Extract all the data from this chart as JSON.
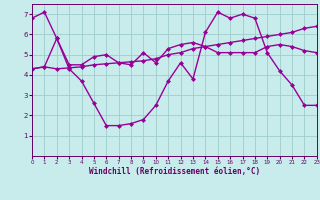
{
  "line1": {
    "x": [
      0,
      1,
      2,
      3,
      4,
      5,
      6,
      7,
      8,
      9,
      10,
      11,
      12,
      13,
      14,
      15,
      16,
      17,
      18,
      19,
      20,
      21,
      22,
      23
    ],
    "y": [
      6.8,
      7.1,
      5.8,
      4.3,
      3.7,
      2.6,
      1.5,
      1.5,
      1.6,
      1.8,
      2.5,
      3.7,
      4.6,
      3.8,
      6.1,
      7.1,
      6.8,
      7.0,
      6.8,
      5.1,
      4.2,
      3.5,
      2.5,
      2.5
    ]
  },
  "line2": {
    "x": [
      0,
      1,
      2,
      3,
      4,
      5,
      6,
      7,
      8,
      9,
      10,
      11,
      12,
      13,
      14,
      15,
      16,
      17,
      18,
      19,
      20,
      21,
      22,
      23
    ],
    "y": [
      4.3,
      4.4,
      4.3,
      4.35,
      4.4,
      4.5,
      4.55,
      4.6,
      4.65,
      4.7,
      4.8,
      5.0,
      5.1,
      5.3,
      5.4,
      5.5,
      5.6,
      5.7,
      5.8,
      5.9,
      6.0,
      6.1,
      6.3,
      6.4
    ]
  },
  "line3": {
    "x": [
      0,
      1,
      2,
      3,
      4,
      5,
      6,
      7,
      8,
      9,
      10,
      11,
      12,
      13,
      14,
      15,
      16,
      17,
      18,
      19,
      20,
      21,
      22,
      23
    ],
    "y": [
      4.3,
      4.4,
      5.8,
      4.5,
      4.5,
      4.9,
      5.0,
      4.6,
      4.5,
      5.1,
      4.6,
      5.3,
      5.5,
      5.6,
      5.4,
      5.1,
      5.1,
      5.1,
      5.1,
      5.4,
      5.5,
      5.4,
      5.2,
      5.1
    ]
  },
  "color": "#990099",
  "bg_color": "#c8ecec",
  "grid_color": "#a0cccc",
  "axis_color": "#660066",
  "xlim": [
    0,
    23
  ],
  "ylim": [
    0,
    7.5
  ],
  "yticks": [
    1,
    2,
    3,
    4,
    5,
    6,
    7
  ],
  "xticks": [
    0,
    1,
    2,
    3,
    4,
    5,
    6,
    7,
    8,
    9,
    10,
    11,
    12,
    13,
    14,
    15,
    16,
    17,
    18,
    19,
    20,
    21,
    22,
    23
  ],
  "xlabel": "Windchill (Refroidissement éolien,°C)",
  "marker": "D",
  "marker_size": 2,
  "linewidth": 1.0
}
